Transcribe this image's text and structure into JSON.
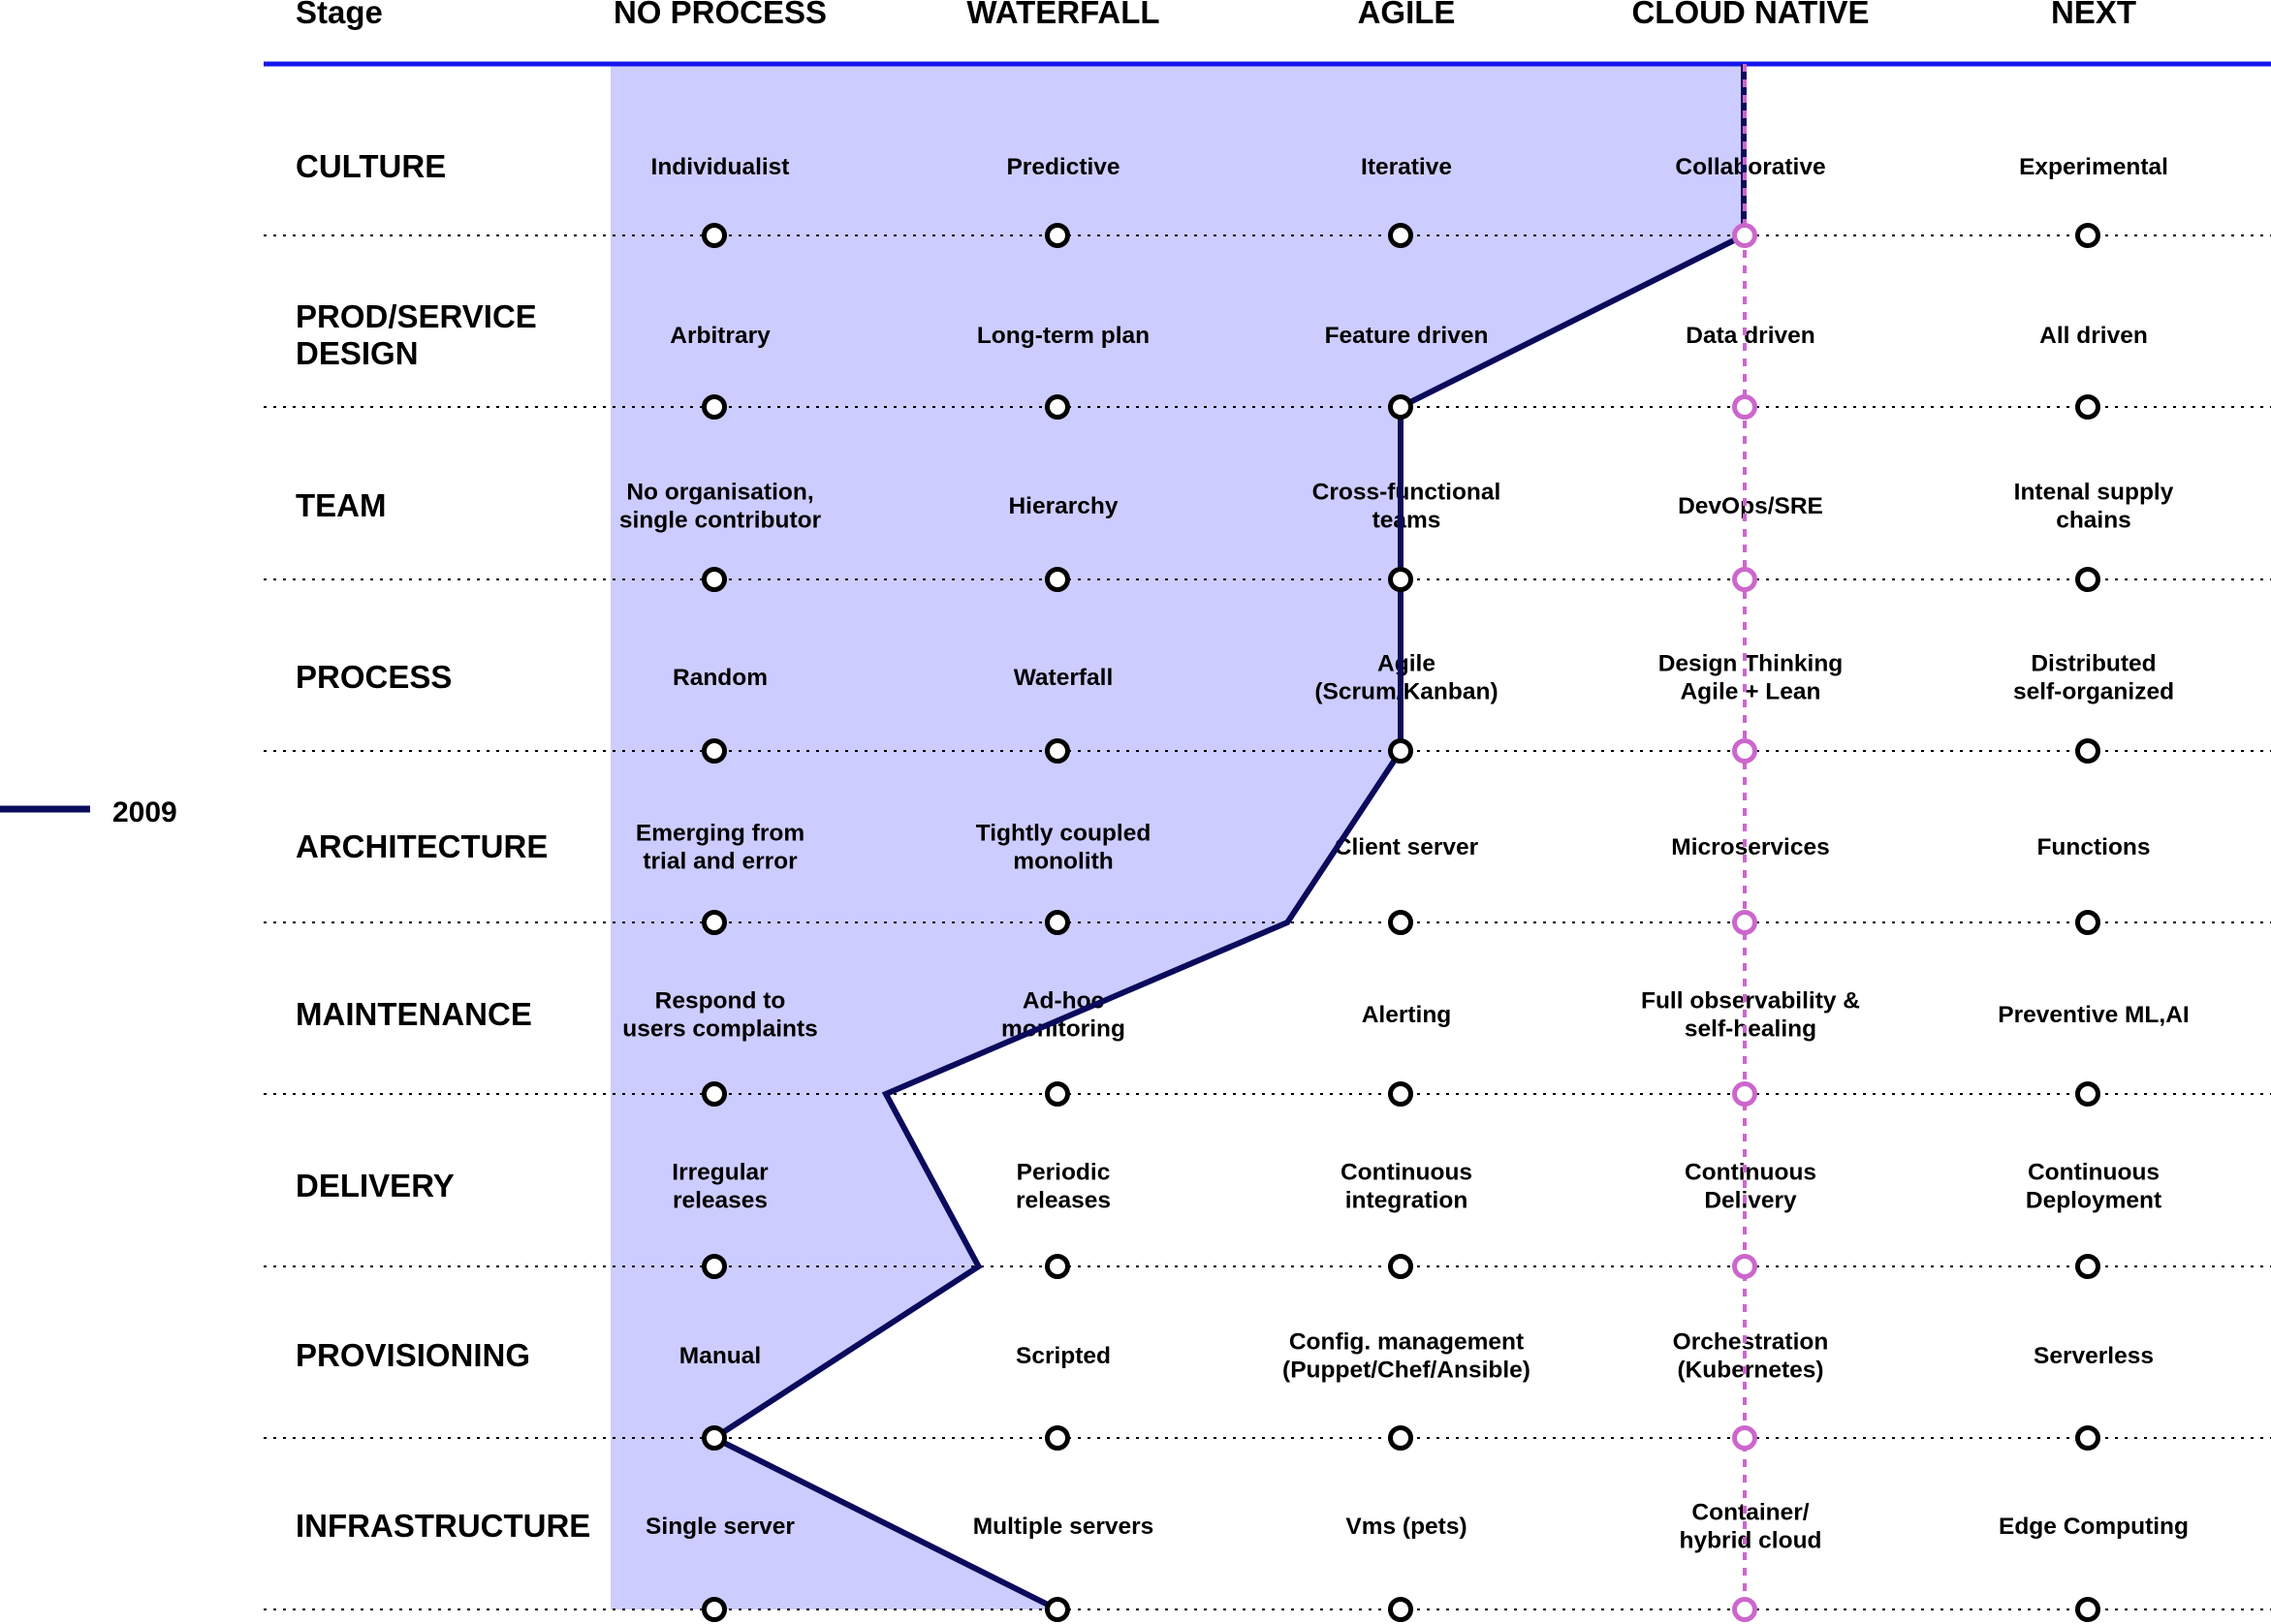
{
  "header": {
    "stage_label": "Stage",
    "columns": [
      "NO PROCESS",
      "WATERFALL",
      "AGILE",
      "CLOUD NATIVE",
      "NEXT"
    ]
  },
  "rows": [
    {
      "label": [
        "CULTURE"
      ],
      "cells": [
        [
          "Individualist"
        ],
        [
          "Predictive"
        ],
        [
          "Iterative"
        ],
        [
          "Collaborative"
        ],
        [
          "Experimental"
        ]
      ]
    },
    {
      "label": [
        "PROD/SERVICE",
        "DESIGN"
      ],
      "cells": [
        [
          "Arbitrary"
        ],
        [
          "Long-term plan"
        ],
        [
          "Feature driven"
        ],
        [
          "Data driven"
        ],
        [
          "All driven"
        ]
      ]
    },
    {
      "label": [
        "TEAM"
      ],
      "cells": [
        [
          "No organisation,",
          "single contributor"
        ],
        [
          "Hierarchy"
        ],
        [
          "Cross-functional",
          "teams"
        ],
        [
          "DevOps/SRE"
        ],
        [
          "Intenal supply",
          "chains"
        ]
      ]
    },
    {
      "label": [
        "PROCESS"
      ],
      "cells": [
        [
          "Random"
        ],
        [
          "Waterfall"
        ],
        [
          "Agile",
          "(Scrum/Kanban)"
        ],
        [
          "Design Thinking",
          "Agile + Lean"
        ],
        [
          "Distributed",
          "self-organized"
        ]
      ]
    },
    {
      "label": [
        "ARCHITECTURE"
      ],
      "cells": [
        [
          "Emerging from",
          "trial and error"
        ],
        [
          "Tightly coupled",
          "monolith"
        ],
        [
          "Client server"
        ],
        [
          "Microservices"
        ],
        [
          "Functions"
        ]
      ]
    },
    {
      "label": [
        "MAINTENANCE"
      ],
      "cells": [
        [
          "Respond to",
          "users complaints"
        ],
        [
          "Ad-hoc",
          "monitoring"
        ],
        [
          "Alerting"
        ],
        [
          "Full observability &",
          "self-healing"
        ],
        [
          "Preventive ML,AI"
        ]
      ]
    },
    {
      "label": [
        "DELIVERY"
      ],
      "cells": [
        [
          "Irregular",
          "releases"
        ],
        [
          "Periodic",
          "releases"
        ],
        [
          "Continuous",
          "integration"
        ],
        [
          "Continuous",
          "Delivery"
        ],
        [
          "Continuous",
          "Deployment"
        ]
      ]
    },
    {
      "label": [
        "PROVISIONING"
      ],
      "cells": [
        [
          "Manual"
        ],
        [
          "Scripted"
        ],
        [
          "Config. management",
          "(Puppet/Chef/Ansible)"
        ],
        [
          "Orchestration",
          "(Kubernetes)"
        ],
        [
          "Serverless"
        ]
      ]
    },
    {
      "label": [
        "INFRASTRUCTURE"
      ],
      "cells": [
        [
          "Single server"
        ],
        [
          "Multiple servers"
        ],
        [
          "Vms (pets)"
        ],
        [
          "Container/",
          "hybrid cloud"
        ],
        [
          "Edge Computing"
        ]
      ]
    }
  ],
  "legend": {
    "label": "2009"
  },
  "colors": {
    "header_line": "#1515ee",
    "area_fill": "#ccccff",
    "profile_line": "#0b0b5c",
    "cloud_native_marker": "#cc66cc",
    "dotted_line": "#000000",
    "marker_default": "#000000"
  },
  "profile_2009": {
    "series_name": "2009",
    "column_positions_per_row": [
      3,
      2,
      2,
      2,
      1.67,
      0.5,
      0.77,
      0,
      1
    ]
  }
}
